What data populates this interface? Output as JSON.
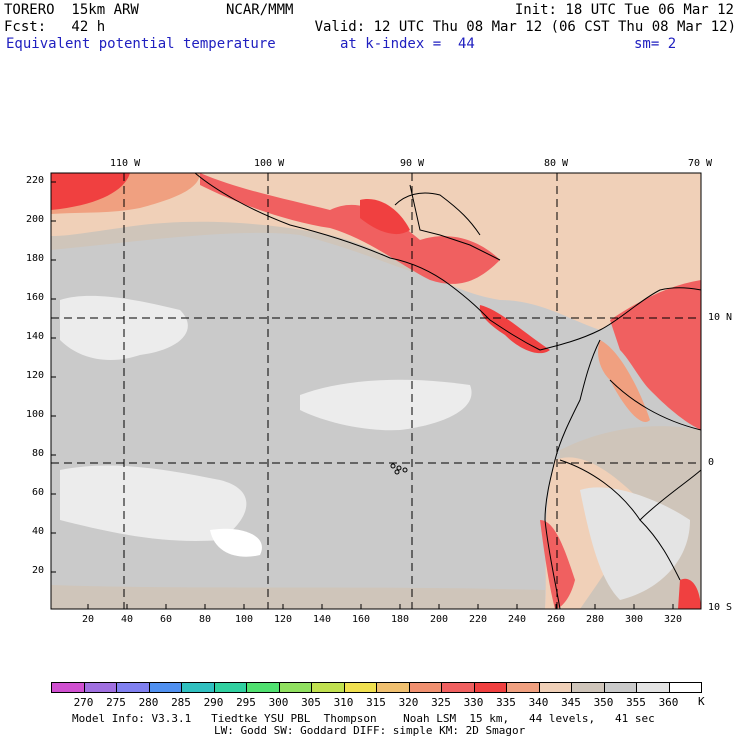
{
  "header": {
    "model": "TORERO  15km ARW",
    "center": "NCAR/MMM",
    "init": "Init: 18 UTC Tue 06 Mar 12",
    "fcst": "Fcst:   42 h",
    "valid": "Valid: 12 UTC Thu 08 Mar 12 (06 CST Thu 08 Mar 12)",
    "field": "Equivalent potential temperature",
    "level": "at k-index =  44",
    "smooth": "sm= 2"
  },
  "axes": {
    "top_lon": [
      "110 W",
      "100 W",
      "90 W",
      "80 W",
      "70 W"
    ],
    "right_lat": [
      "10 N",
      "0",
      "10 S"
    ],
    "left_y": [
      "220",
      "200",
      "180",
      "160",
      "140",
      "120",
      "100",
      "80",
      "60",
      "40",
      "20"
    ],
    "bottom_x": [
      "20",
      "40",
      "60",
      "80",
      "100",
      "120",
      "140",
      "160",
      "180",
      "200",
      "220",
      "240",
      "260",
      "280",
      "300",
      "320"
    ]
  },
  "colorbar": {
    "labels": [
      "270",
      "275",
      "280",
      "285",
      "290",
      "295",
      "300",
      "305",
      "310",
      "315",
      "320",
      "325",
      "330",
      "335",
      "340",
      "345",
      "350",
      "355",
      "360"
    ],
    "unit": "K",
    "colors": [
      "#d050d0",
      "#a070e0",
      "#8080f0",
      "#5090f0",
      "#30c0c0",
      "#30d0a0",
      "#50e070",
      "#90e060",
      "#c0e050",
      "#f0e050",
      "#f0c070",
      "#f09070",
      "#f06060",
      "#f04040",
      "#f0a080",
      "#f0d0b8",
      "#cfc5ba",
      "#cacaca",
      "#e4e4e4",
      "#ffffff"
    ]
  },
  "footer": {
    "line1": "Model Info: V3.3.1   Tiedtke YSU PBL  Thompson    Noah LSM  15 km,   44 levels,   41 sec",
    "line2": "LW: Godd SW: Goddard DIFF: simple KM: 2D Smagor"
  }
}
